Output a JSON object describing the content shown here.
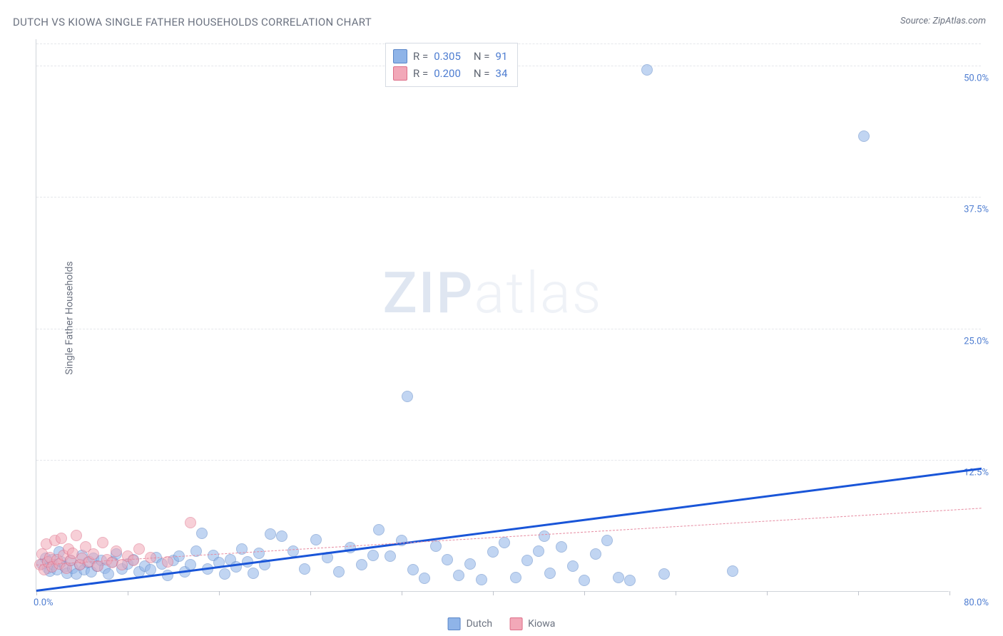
{
  "title": "DUTCH VS KIOWA SINGLE FATHER HOUSEHOLDS CORRELATION CHART",
  "source_label": "Source:",
  "source_name": "ZipAtlas.com",
  "ylabel": "Single Father Households",
  "watermark_a": "ZIP",
  "watermark_b": "atlas",
  "chart": {
    "type": "scatter",
    "background": "#ffffff",
    "grid_color": "#e5e7eb",
    "axis_color": "#d0d4da",
    "tick_label_color": "#4e7dd1",
    "text_color": "#6b7280",
    "xlim": [
      0,
      80
    ],
    "ylim": [
      0,
      52.5
    ],
    "x_tick_positions": [
      0,
      8,
      16,
      24,
      32,
      40,
      48,
      56,
      64,
      72,
      80
    ],
    "x_min_label": "0.0%",
    "x_max_label": "80.0%",
    "y_grid": [
      {
        "v": 12.5,
        "label": "12.5%"
      },
      {
        "v": 25.0,
        "label": "25.0%"
      },
      {
        "v": 37.5,
        "label": "37.5%"
      },
      {
        "v": 50.0,
        "label": "50.0%"
      }
    ],
    "marker_radius": 8,
    "marker_opacity": 0.55,
    "series": [
      {
        "name": "Dutch",
        "color": "#8fb4e8",
        "border": "#5a86c8",
        "r_value": "0.305",
        "n_value": "91",
        "trend": {
          "color": "#1955d8",
          "width": 3,
          "dash": "solid",
          "y_at_x0": 0.2,
          "y_at_xmax": 11.8
        },
        "points": [
          [
            0.5,
            2.6
          ],
          [
            0.8,
            3.1
          ],
          [
            1.0,
            2.2
          ],
          [
            1.2,
            1.9
          ],
          [
            1.4,
            3.0
          ],
          [
            1.5,
            2.5
          ],
          [
            1.8,
            2.0
          ],
          [
            2.0,
            3.7
          ],
          [
            2.2,
            2.8
          ],
          [
            2.5,
            2.3
          ],
          [
            2.7,
            1.7
          ],
          [
            3.0,
            2.9
          ],
          [
            3.2,
            2.2
          ],
          [
            3.5,
            1.6
          ],
          [
            3.8,
            2.5
          ],
          [
            4.0,
            3.4
          ],
          [
            4.2,
            2.0
          ],
          [
            4.5,
            2.7
          ],
          [
            4.8,
            1.8
          ],
          [
            5.0,
            3.1
          ],
          [
            5.3,
            2.4
          ],
          [
            5.7,
            2.9
          ],
          [
            6.0,
            2.2
          ],
          [
            6.3,
            1.6
          ],
          [
            6.7,
            2.8
          ],
          [
            7.0,
            3.5
          ],
          [
            7.5,
            2.1
          ],
          [
            8.0,
            2.6
          ],
          [
            8.5,
            3.0
          ],
          [
            9.0,
            1.8
          ],
          [
            9.5,
            2.4
          ],
          [
            10.0,
            2.0
          ],
          [
            10.5,
            3.2
          ],
          [
            11.0,
            2.6
          ],
          [
            11.5,
            1.5
          ],
          [
            12.0,
            2.9
          ],
          [
            12.5,
            3.3
          ],
          [
            13.0,
            1.8
          ],
          [
            13.5,
            2.5
          ],
          [
            14.0,
            3.8
          ],
          [
            14.5,
            5.5
          ],
          [
            15.0,
            2.1
          ],
          [
            15.5,
            3.4
          ],
          [
            16.0,
            2.7
          ],
          [
            16.5,
            1.6
          ],
          [
            17.0,
            3.0
          ],
          [
            17.5,
            2.3
          ],
          [
            18.0,
            4.0
          ],
          [
            18.5,
            2.8
          ],
          [
            19.0,
            1.7
          ],
          [
            19.5,
            3.6
          ],
          [
            20.0,
            2.5
          ],
          [
            20.5,
            5.4
          ],
          [
            21.5,
            5.2
          ],
          [
            22.5,
            3.8
          ],
          [
            23.5,
            2.1
          ],
          [
            24.5,
            4.9
          ],
          [
            25.5,
            3.2
          ],
          [
            26.5,
            1.8
          ],
          [
            27.5,
            4.1
          ],
          [
            28.5,
            2.5
          ],
          [
            29.5,
            3.4
          ],
          [
            30.0,
            5.8
          ],
          [
            31.0,
            3.3
          ],
          [
            32.0,
            4.8
          ],
          [
            32.5,
            18.5
          ],
          [
            33.0,
            2.0
          ],
          [
            34.0,
            1.2
          ],
          [
            35.0,
            4.3
          ],
          [
            36.0,
            3.0
          ],
          [
            37.0,
            1.5
          ],
          [
            38.0,
            2.6
          ],
          [
            39.0,
            1.1
          ],
          [
            40.0,
            3.7
          ],
          [
            41.0,
            4.6
          ],
          [
            42.0,
            1.3
          ],
          [
            43.0,
            2.9
          ],
          [
            44.0,
            3.8
          ],
          [
            45.0,
            1.7
          ],
          [
            46.0,
            4.2
          ],
          [
            47.0,
            2.4
          ],
          [
            48.0,
            1.0
          ],
          [
            49.0,
            3.5
          ],
          [
            50.0,
            4.8
          ],
          [
            51.0,
            1.3
          ],
          [
            52.0,
            1.0
          ],
          [
            53.5,
            49.5
          ],
          [
            55.0,
            1.6
          ],
          [
            61.0,
            1.9
          ],
          [
            72.5,
            43.2
          ],
          [
            44.5,
            5.2
          ]
        ]
      },
      {
        "name": "Kiowa",
        "color": "#f2a8b8",
        "border": "#dd6e88",
        "r_value": "0.200",
        "n_value": "34",
        "trend": {
          "color": "#e68aa0",
          "width": 1.5,
          "dash": "dashed",
          "y_at_x0": 2.6,
          "y_at_xmax": 8.0
        },
        "points": [
          [
            0.3,
            2.5
          ],
          [
            0.5,
            3.5
          ],
          [
            0.7,
            2.0
          ],
          [
            0.9,
            4.5
          ],
          [
            1.0,
            2.8
          ],
          [
            1.2,
            3.2
          ],
          [
            1.4,
            2.3
          ],
          [
            1.6,
            4.8
          ],
          [
            1.8,
            3.0
          ],
          [
            2.0,
            2.6
          ],
          [
            2.2,
            5.0
          ],
          [
            2.4,
            3.4
          ],
          [
            2.6,
            2.2
          ],
          [
            2.8,
            4.0
          ],
          [
            3.0,
            2.9
          ],
          [
            3.2,
            3.6
          ],
          [
            3.5,
            5.3
          ],
          [
            3.8,
            2.5
          ],
          [
            4.0,
            3.1
          ],
          [
            4.3,
            4.2
          ],
          [
            4.6,
            2.8
          ],
          [
            5.0,
            3.5
          ],
          [
            5.4,
            2.4
          ],
          [
            5.8,
            4.6
          ],
          [
            6.2,
            3.0
          ],
          [
            6.6,
            2.7
          ],
          [
            7.0,
            3.8
          ],
          [
            7.5,
            2.5
          ],
          [
            8.0,
            3.3
          ],
          [
            8.5,
            2.9
          ],
          [
            9.0,
            4.0
          ],
          [
            10.0,
            3.2
          ],
          [
            11.5,
            2.8
          ],
          [
            13.5,
            6.5
          ]
        ]
      }
    ]
  },
  "stat_legend": {
    "r_label": "R",
    "n_label": "N",
    "eq": "="
  },
  "bottom_legend": {
    "items": [
      "Dutch",
      "Kiowa"
    ]
  }
}
